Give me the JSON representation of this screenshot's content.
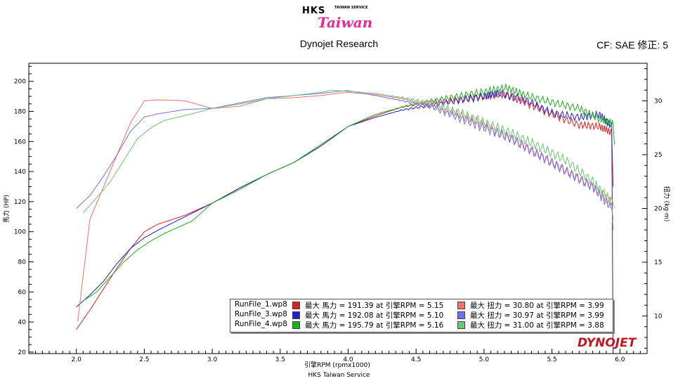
{
  "header": {
    "logo_text": "HKS",
    "logo_sub": "TAIWAN SERVICE",
    "logo_script": "Taiwan",
    "title": "Dynojet Research",
    "correction": "CF: SAE 修正: 5"
  },
  "footer": {
    "text": "HKS Taiwan Service",
    "brand": "DYNOJET"
  },
  "chart_data": {
    "type": "line",
    "xlabel": "引擎RPM (rpmx1000)",
    "ylabel_left": "馬力 (HP)",
    "ylabel_right": "扭力 (kg·m)",
    "xlim": [
      1.65,
      6.2
    ],
    "ylim_left": [
      19,
      212
    ],
    "ylim_right": [
      6.5,
      33.5
    ],
    "x_ticks": [
      2.0,
      2.5,
      3.0,
      3.5,
      4.0,
      4.5,
      5.0,
      5.5,
      6.0
    ],
    "x_tick_labels": [
      "2.0",
      "2.5",
      "3.0",
      "3.5",
      "4.0",
      "4.5",
      "5.0",
      "5.5",
      "6.0"
    ],
    "y_ticks_left": [
      20,
      40,
      60,
      80,
      100,
      120,
      140,
      160,
      180,
      200
    ],
    "y_ticks_right": [
      10,
      15,
      20,
      25,
      30
    ],
    "grid": false,
    "colors": {
      "RunFile_1.wp8": "#e02020",
      "RunFile_3.wp8": "#2020d0",
      "RunFile_4.wp8": "#20b020"
    },
    "series": [
      {
        "name": "RunFile_1.wp8 馬力",
        "axis": "left",
        "color": "#e02020",
        "x": [
          2.0,
          2.1,
          2.2,
          2.3,
          2.4,
          2.5,
          2.6,
          2.8,
          3.0,
          3.2,
          3.4,
          3.6,
          3.8,
          4.0,
          4.2,
          4.4,
          4.6,
          4.8,
          5.0,
          5.15,
          5.3,
          5.5,
          5.7,
          5.85,
          5.94,
          5.95
        ],
        "y": [
          35,
          48,
          62,
          76,
          89,
          100,
          105,
          111,
          119,
          129,
          138,
          146,
          157,
          170,
          177,
          183,
          186,
          188,
          190,
          191.4,
          186,
          178,
          171,
          170,
          166,
          130
        ]
      },
      {
        "name": "RunFile_3.wp8 馬力",
        "axis": "left",
        "color": "#2020d0",
        "x": [
          2.0,
          2.1,
          2.2,
          2.3,
          2.4,
          2.5,
          2.6,
          2.8,
          3.0,
          3.2,
          3.4,
          3.6,
          3.8,
          4.0,
          4.2,
          4.4,
          4.6,
          4.8,
          5.0,
          5.1,
          5.3,
          5.5,
          5.7,
          5.85,
          5.94,
          5.95
        ],
        "y": [
          50,
          58,
          67,
          79,
          89,
          96,
          101,
          110,
          119,
          129,
          138,
          146,
          157,
          170,
          176,
          181,
          184,
          187,
          190,
          192.1,
          188,
          179,
          176,
          178,
          170,
          20
        ]
      },
      {
        "name": "RunFile_4.wp8 馬力",
        "axis": "left",
        "color": "#20b020",
        "x": [
          2.05,
          2.15,
          2.25,
          2.35,
          2.45,
          2.55,
          2.65,
          2.85,
          3.0,
          3.2,
          3.4,
          3.6,
          3.8,
          4.0,
          4.2,
          4.4,
          4.6,
          4.8,
          5.0,
          5.16,
          5.3,
          5.5,
          5.7,
          5.85,
          5.95,
          5.96
        ],
        "y": [
          54,
          60,
          70,
          80,
          88,
          94,
          99,
          107,
          119,
          128,
          138,
          146,
          158,
          170,
          178,
          183,
          187,
          190,
          193,
          195.8,
          191,
          186,
          182,
          175,
          172,
          158
        ]
      },
      {
        "name": "RunFile_1.wp8 扭力",
        "axis": "right",
        "color": "#f07070",
        "x": [
          2.01,
          2.1,
          2.2,
          2.3,
          2.4,
          2.5,
          2.6,
          2.8,
          3.0,
          3.2,
          3.4,
          3.6,
          3.8,
          3.99,
          4.2,
          4.4,
          4.6,
          4.8,
          5.0,
          5.2,
          5.4,
          5.6,
          5.8,
          5.94,
          5.95
        ],
        "y": [
          9.5,
          19,
          22,
          25,
          28,
          30,
          30.1,
          30,
          29.3,
          29.5,
          30.2,
          30.3,
          30.5,
          30.8,
          30.6,
          30.2,
          29.6,
          28.8,
          27.8,
          26.5,
          25,
          23.5,
          22,
          20.5,
          18
        ]
      },
      {
        "name": "RunFile_3.wp8 扭力",
        "axis": "right",
        "color": "#7070ee",
        "x": [
          2.0,
          2.1,
          2.2,
          2.3,
          2.4,
          2.5,
          2.6,
          2.8,
          3.0,
          3.2,
          3.4,
          3.6,
          3.8,
          3.99,
          4.2,
          4.4,
          4.6,
          4.8,
          5.0,
          5.2,
          5.4,
          5.6,
          5.8,
          5.94,
          5.95
        ],
        "y": [
          20,
          21.2,
          23,
          25,
          27.2,
          28.5,
          28.8,
          29.2,
          29.3,
          29.8,
          30.3,
          30.5,
          30.7,
          30.97,
          30.5,
          30,
          29.5,
          28.5,
          27.5,
          26.5,
          25,
          23.5,
          22,
          20,
          19
        ]
      },
      {
        "name": "RunFile_4.wp8 扭力",
        "axis": "right",
        "color": "#6cc86c",
        "x": [
          2.05,
          2.15,
          2.25,
          2.35,
          2.45,
          2.55,
          2.65,
          2.85,
          3.0,
          3.2,
          3.4,
          3.6,
          3.8,
          3.88,
          4.2,
          4.4,
          4.6,
          4.8,
          5.0,
          5.2,
          5.4,
          5.6,
          5.8,
          5.95,
          5.96
        ],
        "y": [
          19.6,
          21,
          22.5,
          24.5,
          26.5,
          27.5,
          28.2,
          28.8,
          29.3,
          29.7,
          30.2,
          30.5,
          30.8,
          31.0,
          30.7,
          30.3,
          29.8,
          29,
          28,
          27,
          25.8,
          24.5,
          22.5,
          20.5,
          20
        ]
      }
    ]
  },
  "legend": [
    {
      "run": "RunFile_1.wp8",
      "hp_color": "#e02020",
      "hp_text": "最大 馬力 = 191.39 at 引擎RPM = 5.15",
      "tq_color": "#f07070",
      "tq_text": "最大 扭力 = 30.80 at 引擎RPM = 3.99"
    },
    {
      "run": "RunFile_3.wp8",
      "hp_color": "#2020d0",
      "hp_text": "最大 馬力 = 192.08 at 引擎RPM = 5.10",
      "tq_color": "#7070ee",
      "tq_text": "最大 扭力 = 30.97 at 引擎RPM = 3.99"
    },
    {
      "run": "RunFile_4.wp8",
      "hp_color": "#20b020",
      "hp_text": "最大 馬力 = 195.79 at 引擎RPM = 5.16",
      "tq_color": "#6cc86c",
      "tq_text": "最大 扭力 = 31.00 at 引擎RPM = 3.88"
    }
  ]
}
